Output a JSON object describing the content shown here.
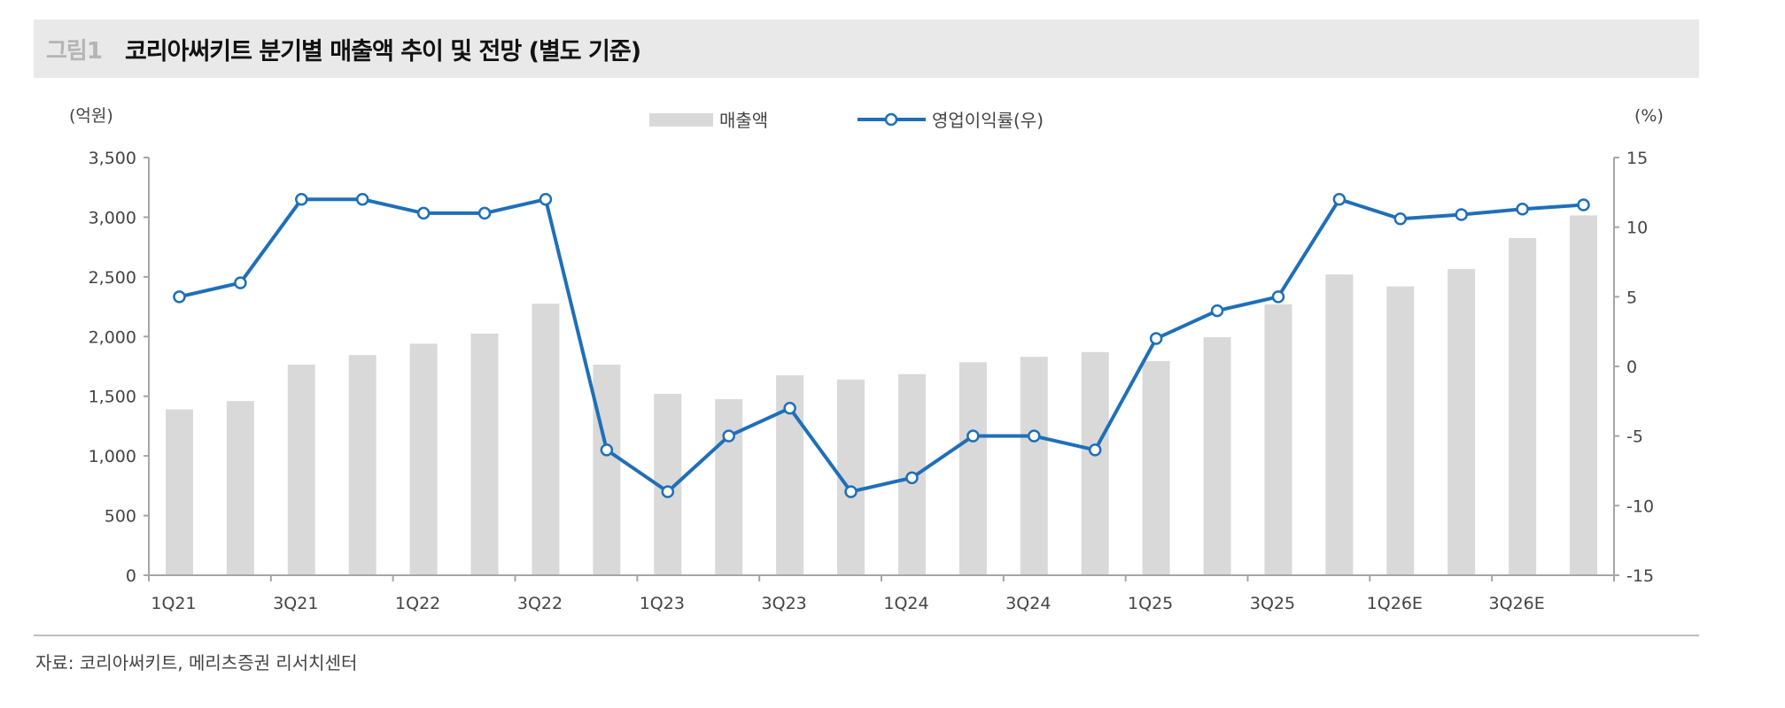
{
  "header": {
    "figure_number": "그림1",
    "title": "코리아써키트 분기별 매출액 추이 및 전망 (별도 기준)"
  },
  "footer": {
    "source": "자료: 코리아써키트, 메리츠증권 리서치센터"
  },
  "colors": {
    "bar": "#d9d9d9",
    "line": "#1f6fb8",
    "marker_fill": "#ffffff",
    "title_bg": "#e9e9e9"
  },
  "chart_data": {
    "type": "bar+line",
    "title": "코리아써키트 분기별 매출액 추이 및 전망 (별도 기준)",
    "categories": [
      "1Q21",
      "2Q21",
      "3Q21",
      "4Q21",
      "1Q22",
      "2Q22",
      "3Q22",
      "4Q22",
      "1Q23",
      "2Q23",
      "3Q23",
      "4Q23",
      "1Q24",
      "2Q24",
      "3Q24",
      "4Q24",
      "1Q25",
      "2Q25",
      "3Q25",
      "4Q25",
      "1Q26E",
      "2Q26E",
      "3Q26E",
      "4Q26E"
    ],
    "tick_labels": [
      "1Q21",
      "3Q21",
      "1Q22",
      "3Q22",
      "1Q23",
      "3Q23",
      "1Q24",
      "3Q24",
      "1Q25",
      "3Q25",
      "1Q26E",
      "3Q26E"
    ],
    "series": [
      {
        "name": "매출액",
        "type": "bar",
        "axis": "left",
        "values": [
          1390,
          1460,
          1765,
          1845,
          1940,
          2025,
          2275,
          1765,
          1520,
          1475,
          1675,
          1640,
          1685,
          1785,
          1830,
          1870,
          1795,
          1995,
          2270,
          2520,
          2420,
          2565,
          2825,
          3015
        ]
      },
      {
        "name": "영업이익률(우)",
        "type": "line",
        "axis": "right",
        "values": [
          5,
          6,
          12,
          12,
          11,
          11,
          12,
          -6,
          -9,
          -5,
          -3,
          -9,
          -8,
          -5,
          -5,
          -6,
          2,
          4,
          5,
          12,
          10.6,
          10.9,
          11.3,
          11.6
        ]
      }
    ],
    "left_axis": {
      "label": "(억원)",
      "ylim": [
        0,
        3500
      ],
      "ticks": [
        "0",
        "500",
        "1,000",
        "1,500",
        "2,000",
        "2,500",
        "3,000",
        "3,500"
      ],
      "tick_values": [
        0,
        500,
        1000,
        1500,
        2000,
        2500,
        3000,
        3500
      ]
    },
    "right_axis": {
      "label": "(%)",
      "ylim": [
        -15,
        15
      ],
      "ticks": [
        "-15",
        "-10",
        "-5",
        "0",
        "5",
        "10",
        "15"
      ],
      "tick_values": [
        -15,
        -10,
        -5,
        0,
        5,
        10,
        15
      ]
    },
    "legend": {
      "position": "top-center",
      "entries": [
        "매출액",
        "영업이익률(우)"
      ]
    },
    "grid": false
  }
}
